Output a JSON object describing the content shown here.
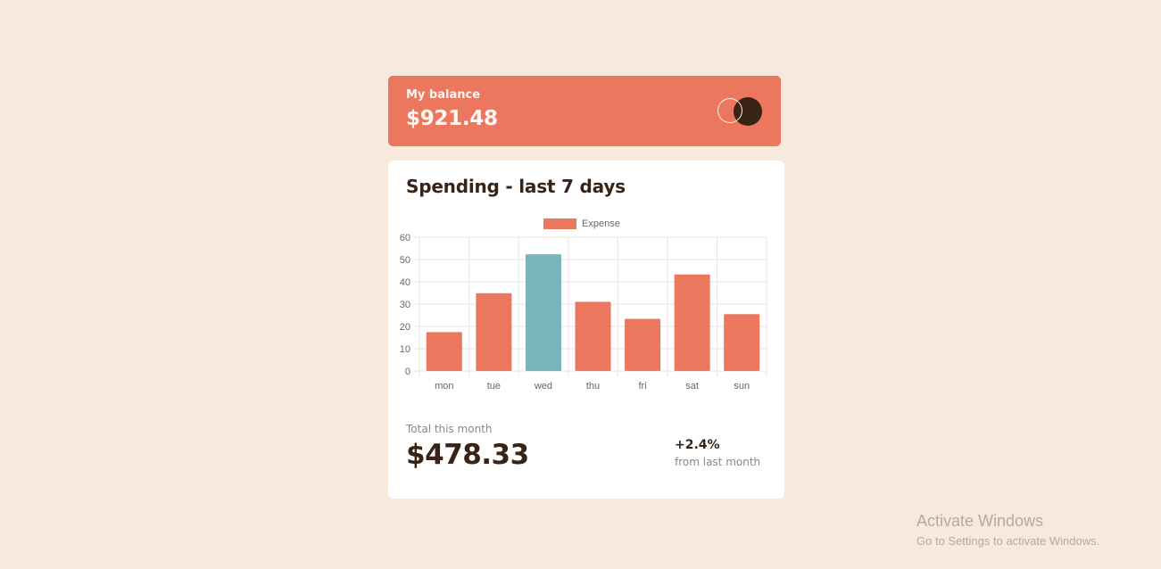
{
  "balance": {
    "label": "My balance",
    "amount": "$921.48"
  },
  "spending": {
    "title": "Spending - last 7 days",
    "total_label": "Total this month",
    "total_amount": "$478.33",
    "change_percent": "+2.4%",
    "change_label": "from last month"
  },
  "chart_data": {
    "type": "bar",
    "categories": [
      "mon",
      "tue",
      "wed",
      "thu",
      "fri",
      "sat",
      "sun"
    ],
    "series": [
      {
        "name": "Expense",
        "values": [
          17.45,
          34.91,
          52.36,
          31.07,
          23.39,
          43.28,
          25.48
        ]
      }
    ],
    "highlight_index": 2,
    "ylim": [
      0,
      60
    ],
    "yticks": [
      0,
      10,
      20,
      30,
      40,
      50,
      60
    ],
    "grid": true,
    "legend_position": "top",
    "colors": {
      "bar": "#ec775f",
      "bar_highlight": "#76b5bc",
      "grid": "#e6e6e6",
      "tick_text": "#666666"
    }
  },
  "overlay": {
    "activate_title": "Activate Windows",
    "activate_sub": "Go to Settings to activate Windows."
  }
}
